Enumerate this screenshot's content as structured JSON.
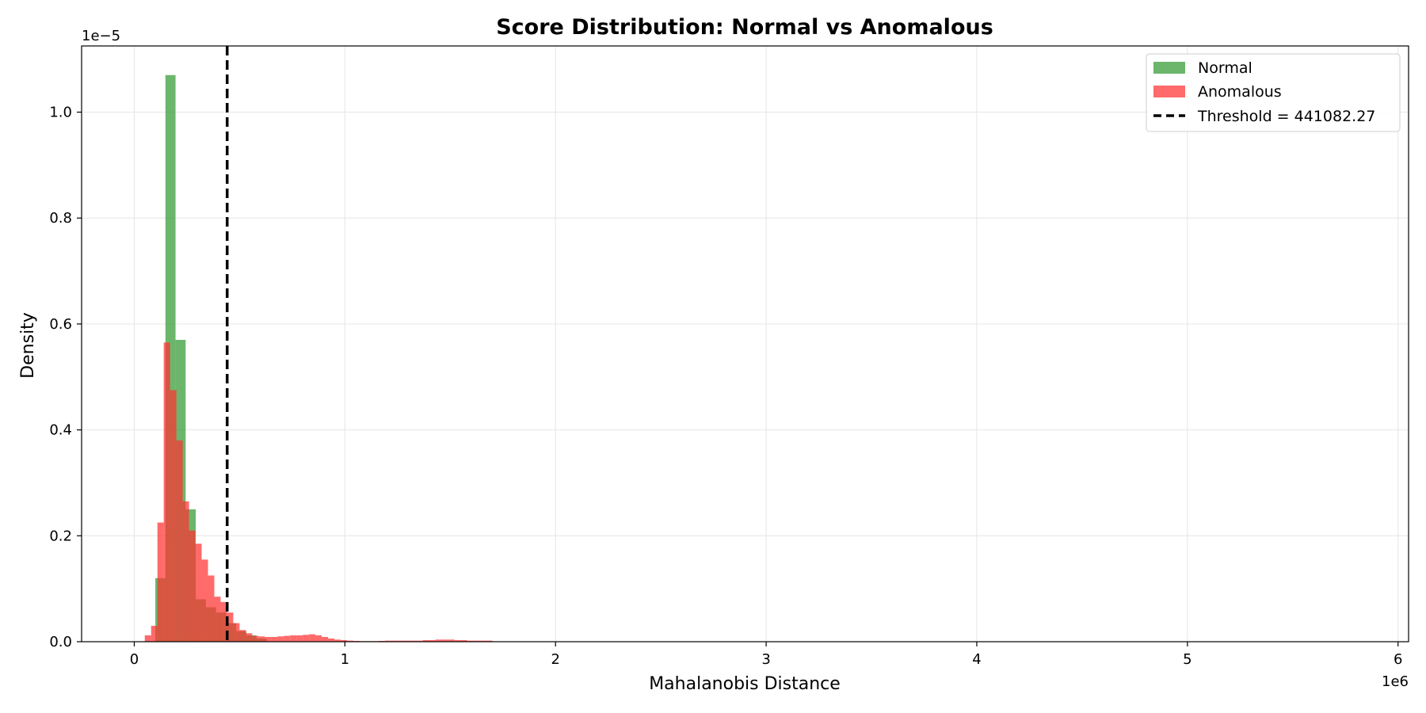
{
  "chart_data": {
    "type": "bar",
    "title": "Score Distribution: Normal vs Anomalous",
    "xlabel": "Mahalanobis Distance",
    "ylabel": "Density",
    "x_offset_label": "1e6",
    "y_offset_label": "1e−5",
    "xlim": [
      -250000,
      6050000
    ],
    "ylim": [
      0,
      1.125
    ],
    "x_ticks": [
      0,
      1000000,
      2000000,
      3000000,
      4000000,
      5000000,
      6000000
    ],
    "x_tick_labels": [
      "0",
      "1",
      "2",
      "3",
      "4",
      "5",
      "6"
    ],
    "y_ticks": [
      0,
      0.2,
      0.4,
      0.6,
      0.8,
      1.0
    ],
    "y_tick_labels": [
      "0.0",
      "0.2",
      "0.4",
      "0.6",
      "0.8",
      "1.0"
    ],
    "grid": true,
    "legend_position": "top-right",
    "colors": {
      "normal": "#3a9e3a",
      "anomalous": "#ff3030",
      "threshold": "#000000"
    },
    "series": [
      {
        "name": "Normal",
        "bin_width": 48000,
        "bin_edges_start": [
          100000,
          148000,
          196000,
          244000,
          292000,
          340000,
          388000,
          436000,
          484000,
          532000,
          580000
        ],
        "values": [
          0.12,
          1.07,
          0.57,
          0.25,
          0.08,
          0.065,
          0.055,
          0.035,
          0.02,
          0.012,
          0.006
        ]
      },
      {
        "name": "Anomalous",
        "bin_width": 30000,
        "bin_edges_start": [
          50000,
          80000,
          110000,
          140000,
          170000,
          200000,
          230000,
          260000,
          290000,
          320000,
          350000,
          380000,
          410000,
          440000,
          470000,
          500000,
          530000,
          560000,
          590000,
          620000,
          650000,
          680000,
          710000,
          740000,
          770000,
          800000,
          830000,
          860000,
          890000,
          920000,
          950000,
          980000,
          1010000,
          1040000,
          1070000,
          1100000,
          1130000,
          1160000,
          1190000,
          1220000,
          1250000,
          1280000,
          1310000,
          1340000,
          1370000,
          1400000,
          1430000,
          1460000,
          1490000,
          1520000,
          1550000,
          1580000,
          1610000,
          1640000,
          1670000
        ],
        "values": [
          0.012,
          0.03,
          0.225,
          0.565,
          0.475,
          0.38,
          0.265,
          0.21,
          0.185,
          0.155,
          0.125,
          0.085,
          0.075,
          0.055,
          0.035,
          0.022,
          0.016,
          0.011,
          0.01,
          0.009,
          0.009,
          0.01,
          0.011,
          0.012,
          0.012,
          0.013,
          0.014,
          0.012,
          0.009,
          0.006,
          0.004,
          0.003,
          0.002,
          0.0015,
          0.001,
          0.001,
          0.001,
          0.0015,
          0.002,
          0.002,
          0.002,
          0.002,
          0.002,
          0.002,
          0.003,
          0.003,
          0.004,
          0.004,
          0.004,
          0.003,
          0.003,
          0.002,
          0.002,
          0.002,
          0.002
        ]
      }
    ],
    "threshold": {
      "name": "Threshold = 441082.27",
      "value": 441082.27
    }
  }
}
